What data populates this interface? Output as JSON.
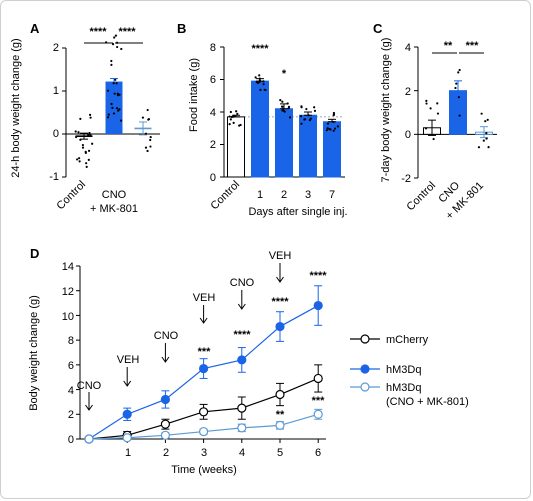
{
  "panels": {
    "A": {
      "letter": "A",
      "ylabel": "24-h body weight change (g)",
      "yticks": [
        "-1",
        "0",
        "1",
        "2"
      ],
      "xticks": [
        "Control",
        "CNO",
        "+ MK-801"
      ],
      "sig": [
        "****",
        "****"
      ]
    },
    "B": {
      "letter": "B",
      "ylabel": "Food intake (g)",
      "xlabel": "Days after single inj.",
      "yticks": [
        "0",
        "2",
        "4",
        "6",
        "8"
      ],
      "xticks": [
        "Control",
        "1",
        "2",
        "3",
        "7"
      ],
      "sig": [
        "****",
        "*"
      ]
    },
    "C": {
      "letter": "C",
      "ylabel": "7-day body weight change (g)",
      "yticks": [
        "-2",
        "0",
        "2",
        "4"
      ],
      "xticks": [
        "Control",
        "CNO",
        "+ MK-801"
      ],
      "sig": [
        "**",
        "***"
      ]
    },
    "D": {
      "letter": "D",
      "ylabel": "Body weight change (g)",
      "xlabel": "Time (weeks)",
      "yticks": [
        "0",
        "2",
        "4",
        "6",
        "8",
        "10",
        "12",
        "14"
      ],
      "xticks": [
        "1",
        "2",
        "3",
        "4",
        "5",
        "6"
      ],
      "arrows": [
        "CNO",
        "VEH",
        "CNO",
        "VEH",
        "CNO",
        "VEH"
      ],
      "sig_top": [
        "***",
        "****",
        "****",
        "****"
      ],
      "sig_bottom": [
        "**",
        "***"
      ],
      "legend": [
        "mCherry",
        "hM3Dq",
        "hM3Dq",
        "(CNO + MK-801)"
      ]
    }
  },
  "colors": {
    "blue": "#1a64e8",
    "lightblue": "#5b9ad6",
    "black": "#000000"
  },
  "chart_data": [
    {
      "type": "bar",
      "panel": "A",
      "ylabel": "24-h body weight change (g)",
      "ylim": [
        -1,
        2
      ],
      "categories": [
        "Control",
        "CNO",
        "+ MK-801"
      ],
      "values": [
        -0.05,
        1.22,
        0.13
      ],
      "errors": [
        0.07,
        0.07,
        0.15
      ]
    },
    {
      "type": "bar",
      "panel": "B",
      "ylabel": "Food intake (g)",
      "xlabel": "Days after single inj.",
      "ylim": [
        0,
        8
      ],
      "categories": [
        "Control",
        "1",
        "2",
        "3",
        "7"
      ],
      "values": [
        3.7,
        5.9,
        4.2,
        3.8,
        3.4
      ],
      "errors": [
        0.1,
        0.15,
        0.3,
        0.2,
        0.15
      ]
    },
    {
      "type": "bar",
      "panel": "C",
      "ylabel": "7-day body weight change (g)",
      "ylim": [
        -2,
        4
      ],
      "categories": [
        "Control",
        "CNO",
        "+ MK-801"
      ],
      "values": [
        0.3,
        2.0,
        0.1
      ],
      "errors": [
        0.35,
        0.45,
        0.25
      ]
    },
    {
      "type": "line",
      "panel": "D",
      "xlabel": "Time (weeks)",
      "ylabel": "Body weight change (g)",
      "ylim": [
        0,
        14
      ],
      "x": [
        0,
        1,
        2,
        3,
        4,
        5,
        6
      ],
      "series": [
        {
          "name": "mCherry",
          "values": [
            0,
            0.3,
            1.2,
            2.2,
            2.5,
            3.6,
            4.9
          ],
          "errors": [
            0,
            0.3,
            0.4,
            0.6,
            0.9,
            0.9,
            1.1
          ]
        },
        {
          "name": "hM3Dq",
          "values": [
            0,
            2.0,
            3.2,
            5.7,
            6.4,
            9.1,
            10.8
          ],
          "errors": [
            0,
            0.5,
            0.7,
            0.8,
            1.0,
            1.2,
            1.6
          ]
        },
        {
          "name": "hM3Dq (CNO + MK-801)",
          "values": [
            0,
            0.1,
            0.3,
            0.6,
            0.9,
            1.1,
            2.0
          ],
          "errors": [
            0,
            0.15,
            0.2,
            0.2,
            0.3,
            0.3,
            0.4
          ]
        }
      ]
    }
  ]
}
